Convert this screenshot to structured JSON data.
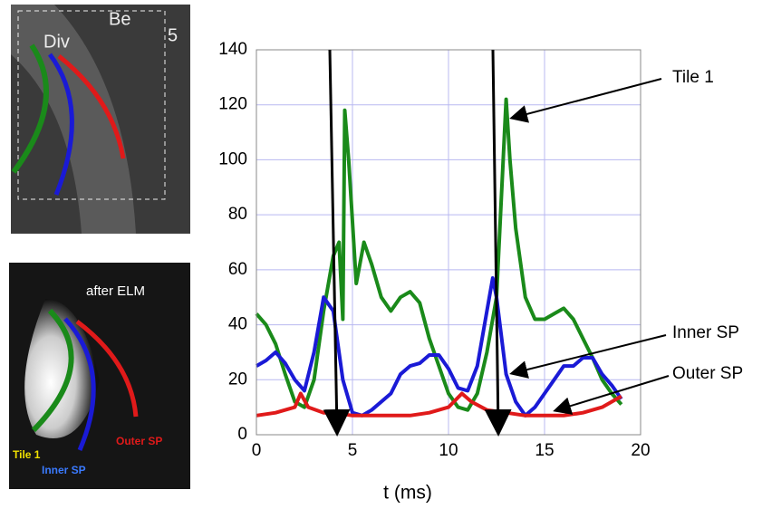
{
  "chart_data": {
    "type": "line",
    "xlabel": "t (ms)",
    "xlim": [
      0,
      20
    ],
    "xticks": [
      0,
      5,
      10,
      15,
      20
    ],
    "ylim": [
      0,
      140
    ],
    "yticks": [
      0,
      20,
      40,
      60,
      80,
      100,
      120,
      140
    ],
    "grid": true,
    "series": [
      {
        "name": "Tile 1",
        "color": "#1a8a1a",
        "x": [
          0,
          0.5,
          1,
          1.5,
          2,
          2.5,
          3,
          3.5,
          4,
          4.3,
          4.5,
          4.6,
          4.8,
          5.2,
          5.6,
          6,
          6.5,
          7,
          7.5,
          8,
          8.5,
          9,
          9.5,
          10,
          10.5,
          11,
          11.5,
          12,
          12.5,
          13,
          13.2,
          13.5,
          14,
          14.5,
          15,
          15.5,
          16,
          16.5,
          17,
          17.5,
          18,
          18.5,
          19
        ],
        "values": [
          44,
          40,
          33,
          22,
          12,
          10,
          20,
          45,
          65,
          70,
          42,
          118,
          100,
          55,
          70,
          62,
          50,
          45,
          50,
          52,
          48,
          35,
          25,
          15,
          10,
          9,
          15,
          30,
          50,
          122,
          100,
          75,
          50,
          42,
          42,
          44,
          46,
          42,
          35,
          28,
          20,
          15,
          11
        ]
      },
      {
        "name": "Inner SP",
        "color": "#1a1ad6",
        "x": [
          0,
          0.5,
          1,
          1.5,
          2,
          2.5,
          3,
          3.5,
          4,
          4.5,
          5,
          5.5,
          6,
          7,
          7.5,
          8,
          8.5,
          9,
          9.5,
          10,
          10.5,
          11,
          11.5,
          12,
          12.3,
          12.5,
          13,
          13.5,
          14,
          14.5,
          15,
          15.5,
          16,
          16.5,
          17,
          17.5,
          18,
          18.5,
          19
        ],
        "values": [
          25,
          27,
          30,
          26,
          20,
          16,
          30,
          50,
          45,
          20,
          8,
          7,
          9,
          15,
          22,
          25,
          26,
          29,
          29,
          24,
          17,
          16,
          25,
          45,
          57,
          50,
          22,
          12,
          7,
          10,
          15,
          20,
          25,
          25,
          28,
          28,
          22,
          18,
          13
        ]
      },
      {
        "name": "Outer SP",
        "color": "#e01a1a",
        "x": [
          0,
          1,
          2,
          2.3,
          2.7,
          3.5,
          4,
          5,
          6,
          7,
          8,
          9,
          10,
          10.7,
          11.2,
          12,
          13,
          14,
          15,
          16,
          17,
          18,
          19
        ],
        "values": [
          7,
          8,
          10,
          15,
          10,
          8,
          8,
          7,
          7,
          7,
          7,
          8,
          10,
          15,
          12,
          9,
          8,
          7,
          7,
          7,
          8,
          10,
          14
        ]
      }
    ]
  },
  "images": {
    "top": {
      "labels": [
        "Be",
        "Div",
        "5"
      ]
    },
    "bottom": {
      "labels": [
        "after ELM",
        "Tile 1",
        "Inner SP",
        "Outer SP"
      ]
    }
  }
}
